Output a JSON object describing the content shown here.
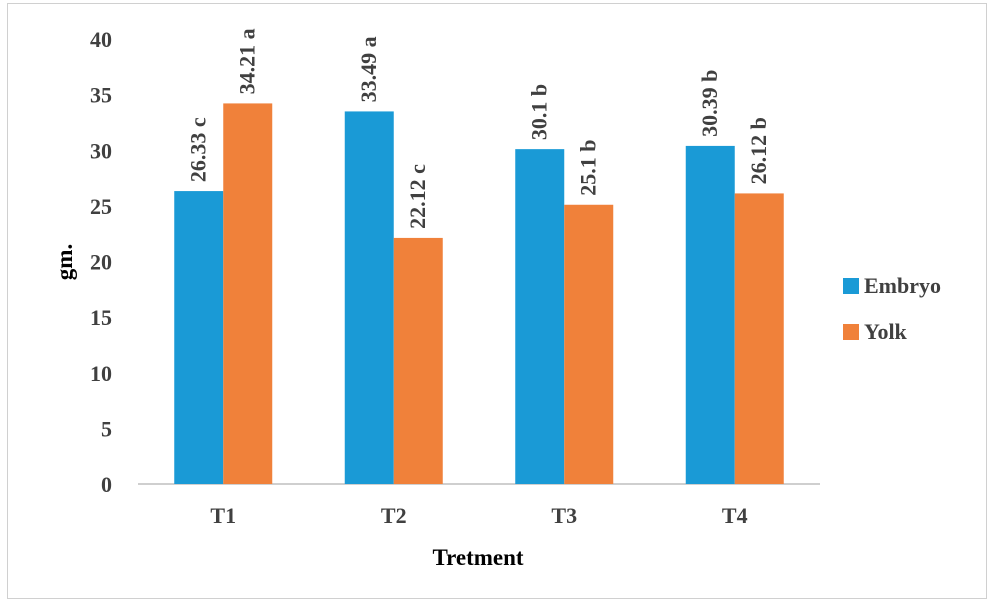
{
  "chart_data": {
    "type": "bar",
    "categories": [
      "T1",
      "T2",
      "T3",
      "T4"
    ],
    "series": [
      {
        "name": "Embryo",
        "color": "#1a9ad6",
        "values": [
          26.33,
          33.49,
          30.1,
          30.39
        ],
        "labels": [
          "26.33 c",
          "33.49 a",
          "30.1 b",
          "30.39 b"
        ]
      },
      {
        "name": "Yolk",
        "color": "#f0813a",
        "values": [
          34.21,
          22.12,
          25.1,
          26.12
        ],
        "labels": [
          "34.21 a",
          "22.12 c",
          "25.1 b",
          "26.12 b"
        ]
      }
    ],
    "xlabel": "Tretment",
    "ylabel": "gm.",
    "ylim": [
      0,
      40
    ],
    "yticks": [
      0,
      5,
      10,
      15,
      20,
      25,
      30,
      35,
      40
    ],
    "grid": false,
    "legend_position": "right"
  }
}
